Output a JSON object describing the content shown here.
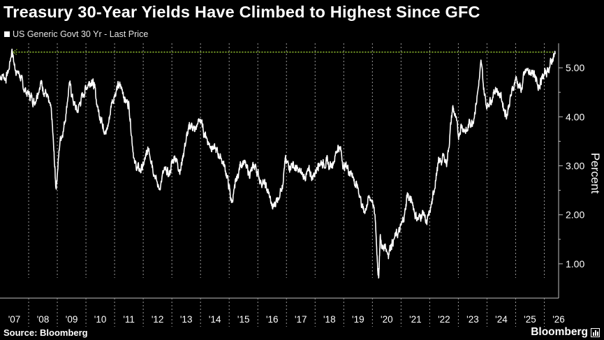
{
  "chart_data": {
    "type": "line",
    "title": "Treasury 30-Year Yields Have Climbed to Highest Since GFC",
    "ylabel": "Percent",
    "ylim": [
      0.3,
      5.5
    ],
    "y_ticks": [
      1.0,
      2.0,
      3.0,
      4.0,
      5.0
    ],
    "y_tick_labels": [
      "1.00",
      "2.00",
      "3.00",
      "4.00",
      "5.00"
    ],
    "x_tick_labels": [
      "'07",
      "'08",
      "'09",
      "'10",
      "'11",
      "'12",
      "'13",
      "'14",
      "'15",
      "'16",
      "'17",
      "'18",
      "'19",
      "'20",
      "'21",
      "'22",
      "'23",
      "'24",
      "'25",
      "'26"
    ],
    "x_range": [
      2007.0,
      2026.5
    ],
    "year_start_markers": [
      2008,
      2009,
      2010,
      2011,
      2012,
      2013,
      2014,
      2015,
      2016,
      2017,
      2018,
      2019,
      2020,
      2021,
      2022,
      2023,
      2024,
      2025,
      2026
    ],
    "grid": false,
    "legend_position": "top-left",
    "reference_line": {
      "value": 5.32,
      "from_x": 2007.45,
      "to_x": 2026.35,
      "color": "#9acd32"
    },
    "series": [
      {
        "name": "US Generic Govt 30 Yr - Last Price",
        "color": "#ffffff",
        "points": [
          [
            2007.0,
            4.82
          ],
          [
            2007.1,
            4.85
          ],
          [
            2007.2,
            4.78
          ],
          [
            2007.3,
            4.95
          ],
          [
            2007.42,
            5.38
          ],
          [
            2007.5,
            5.05
          ],
          [
            2007.6,
            4.92
          ],
          [
            2007.7,
            4.85
          ],
          [
            2007.8,
            4.62
          ],
          [
            2007.9,
            4.52
          ],
          [
            2008.0,
            4.45
          ],
          [
            2008.1,
            4.4
          ],
          [
            2008.2,
            4.3
          ],
          [
            2008.3,
            4.48
          ],
          [
            2008.42,
            4.72
          ],
          [
            2008.5,
            4.58
          ],
          [
            2008.6,
            4.5
          ],
          [
            2008.7,
            4.3
          ],
          [
            2008.8,
            4.05
          ],
          [
            2008.88,
            3.3
          ],
          [
            2008.95,
            2.55
          ],
          [
            2009.0,
            2.82
          ],
          [
            2009.1,
            3.55
          ],
          [
            2009.2,
            3.7
          ],
          [
            2009.3,
            4.05
          ],
          [
            2009.42,
            4.7
          ],
          [
            2009.5,
            4.45
          ],
          [
            2009.6,
            4.25
          ],
          [
            2009.7,
            4.1
          ],
          [
            2009.8,
            4.3
          ],
          [
            2009.9,
            4.45
          ],
          [
            2010.0,
            4.6
          ],
          [
            2010.1,
            4.7
          ],
          [
            2010.2,
            4.75
          ],
          [
            2010.3,
            4.6
          ],
          [
            2010.4,
            4.2
          ],
          [
            2010.5,
            4.0
          ],
          [
            2010.6,
            3.85
          ],
          [
            2010.7,
            3.65
          ],
          [
            2010.8,
            3.9
          ],
          [
            2010.9,
            4.3
          ],
          [
            2011.0,
            4.45
          ],
          [
            2011.1,
            4.6
          ],
          [
            2011.2,
            4.62
          ],
          [
            2011.3,
            4.5
          ],
          [
            2011.4,
            4.3
          ],
          [
            2011.5,
            4.28
          ],
          [
            2011.6,
            3.6
          ],
          [
            2011.7,
            3.05
          ],
          [
            2011.8,
            2.95
          ],
          [
            2011.9,
            2.9
          ],
          [
            2012.0,
            3.0
          ],
          [
            2012.1,
            3.2
          ],
          [
            2012.2,
            3.35
          ],
          [
            2012.3,
            3.1
          ],
          [
            2012.4,
            2.8
          ],
          [
            2012.55,
            2.52
          ],
          [
            2012.7,
            2.85
          ],
          [
            2012.8,
            2.9
          ],
          [
            2012.9,
            2.8
          ],
          [
            2013.0,
            3.05
          ],
          [
            2013.1,
            3.2
          ],
          [
            2013.2,
            3.05
          ],
          [
            2013.3,
            2.9
          ],
          [
            2013.4,
            3.25
          ],
          [
            2013.5,
            3.55
          ],
          [
            2013.6,
            3.75
          ],
          [
            2013.7,
            3.85
          ],
          [
            2013.8,
            3.7
          ],
          [
            2013.9,
            3.85
          ],
          [
            2014.0,
            3.95
          ],
          [
            2014.1,
            3.7
          ],
          [
            2014.2,
            3.6
          ],
          [
            2014.3,
            3.45
          ],
          [
            2014.4,
            3.4
          ],
          [
            2014.5,
            3.35
          ],
          [
            2014.6,
            3.25
          ],
          [
            2014.7,
            3.2
          ],
          [
            2014.8,
            3.05
          ],
          [
            2014.9,
            2.85
          ],
          [
            2015.0,
            2.55
          ],
          [
            2015.08,
            2.25
          ],
          [
            2015.2,
            2.55
          ],
          [
            2015.3,
            2.8
          ],
          [
            2015.4,
            3.05
          ],
          [
            2015.5,
            3.1
          ],
          [
            2015.6,
            2.95
          ],
          [
            2015.7,
            2.85
          ],
          [
            2015.8,
            2.9
          ],
          [
            2015.9,
            3.0
          ],
          [
            2016.0,
            2.85
          ],
          [
            2016.1,
            2.7
          ],
          [
            2016.2,
            2.65
          ],
          [
            2016.3,
            2.55
          ],
          [
            2016.4,
            2.4
          ],
          [
            2016.52,
            2.12
          ],
          [
            2016.6,
            2.25
          ],
          [
            2016.7,
            2.35
          ],
          [
            2016.85,
            2.6
          ],
          [
            2016.95,
            3.1
          ],
          [
            2017.0,
            3.05
          ],
          [
            2017.1,
            3.0
          ],
          [
            2017.2,
            3.05
          ],
          [
            2017.3,
            2.95
          ],
          [
            2017.4,
            2.9
          ],
          [
            2017.5,
            2.85
          ],
          [
            2017.6,
            2.78
          ],
          [
            2017.7,
            2.82
          ],
          [
            2017.8,
            2.88
          ],
          [
            2017.9,
            2.78
          ],
          [
            2018.0,
            2.85
          ],
          [
            2018.1,
            3.05
          ],
          [
            2018.2,
            3.08
          ],
          [
            2018.3,
            3.05
          ],
          [
            2018.4,
            3.1
          ],
          [
            2018.5,
            2.98
          ],
          [
            2018.6,
            3.05
          ],
          [
            2018.7,
            3.2
          ],
          [
            2018.8,
            3.42
          ],
          [
            2018.9,
            3.3
          ],
          [
            2019.0,
            2.98
          ],
          [
            2019.1,
            3.0
          ],
          [
            2019.2,
            2.88
          ],
          [
            2019.3,
            2.85
          ],
          [
            2019.4,
            2.6
          ],
          [
            2019.5,
            2.55
          ],
          [
            2019.6,
            2.3
          ],
          [
            2019.7,
            2.05
          ],
          [
            2019.8,
            2.2
          ],
          [
            2019.9,
            2.35
          ],
          [
            2020.0,
            2.3
          ],
          [
            2020.1,
            1.9
          ],
          [
            2020.18,
            1.0
          ],
          [
            2020.22,
            0.72
          ],
          [
            2020.27,
            1.55
          ],
          [
            2020.35,
            1.3
          ],
          [
            2020.45,
            1.4
          ],
          [
            2020.55,
            1.2
          ],
          [
            2020.65,
            1.4
          ],
          [
            2020.75,
            1.5
          ],
          [
            2020.85,
            1.6
          ],
          [
            2020.95,
            1.65
          ],
          [
            2021.05,
            1.85
          ],
          [
            2021.15,
            2.1
          ],
          [
            2021.22,
            2.45
          ],
          [
            2021.3,
            2.3
          ],
          [
            2021.4,
            2.25
          ],
          [
            2021.5,
            2.0
          ],
          [
            2021.6,
            1.9
          ],
          [
            2021.7,
            2.0
          ],
          [
            2021.8,
            2.05
          ],
          [
            2021.9,
            1.8
          ],
          [
            2022.0,
            2.05
          ],
          [
            2022.1,
            2.3
          ],
          [
            2022.2,
            2.7
          ],
          [
            2022.3,
            3.05
          ],
          [
            2022.4,
            3.1
          ],
          [
            2022.5,
            3.2
          ],
          [
            2022.6,
            3.05
          ],
          [
            2022.7,
            3.6
          ],
          [
            2022.8,
            4.2
          ],
          [
            2022.9,
            4.0
          ],
          [
            2023.0,
            3.6
          ],
          [
            2023.1,
            3.85
          ],
          [
            2023.2,
            3.75
          ],
          [
            2023.3,
            3.7
          ],
          [
            2023.4,
            3.9
          ],
          [
            2023.5,
            3.9
          ],
          [
            2023.6,
            4.2
          ],
          [
            2023.7,
            4.6
          ],
          [
            2023.8,
            5.1
          ],
          [
            2023.9,
            4.5
          ],
          [
            2024.0,
            4.2
          ],
          [
            2024.1,
            4.35
          ],
          [
            2024.2,
            4.4
          ],
          [
            2024.3,
            4.6
          ],
          [
            2024.4,
            4.5
          ],
          [
            2024.5,
            4.4
          ],
          [
            2024.6,
            4.15
          ],
          [
            2024.7,
            4.05
          ],
          [
            2024.8,
            4.35
          ],
          [
            2024.9,
            4.55
          ],
          [
            2025.0,
            4.8
          ],
          [
            2025.1,
            4.65
          ],
          [
            2025.2,
            4.55
          ],
          [
            2025.3,
            4.85
          ],
          [
            2025.4,
            4.95
          ],
          [
            2025.5,
            4.88
          ],
          [
            2025.6,
            4.95
          ],
          [
            2025.7,
            4.72
          ],
          [
            2025.8,
            4.65
          ],
          [
            2025.9,
            4.75
          ],
          [
            2026.0,
            4.85
          ],
          [
            2026.1,
            4.95
          ],
          [
            2026.2,
            5.05
          ],
          [
            2026.3,
            5.2
          ],
          [
            2026.38,
            5.28
          ]
        ]
      }
    ]
  },
  "header": {
    "title": "Treasury 30-Year Yields Have Climbed to Highest Since GFC",
    "legend_label": "US Generic Govt 30 Yr - Last Price"
  },
  "footer": {
    "source": "Source: Bloomberg",
    "brand": "Bloomberg"
  }
}
